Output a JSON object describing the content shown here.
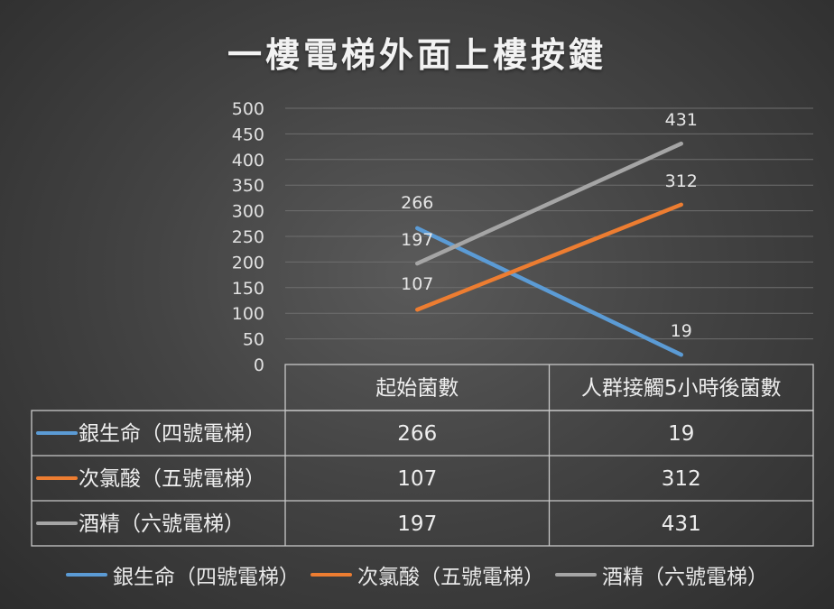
{
  "chart_data": {
    "type": "line",
    "title": "一樓電梯外面上樓按鍵",
    "categories": [
      "起始菌數",
      "人群接觸5小時後菌數"
    ],
    "ylim": [
      0,
      500
    ],
    "yticks": [
      0,
      50,
      100,
      150,
      200,
      250,
      300,
      350,
      400,
      450,
      500
    ],
    "grid": true,
    "data_table": true,
    "legend_position": "bottom",
    "series": [
      {
        "name": "銀生命（四號電梯）",
        "values": [
          266,
          19
        ],
        "color": "#5b9bd5"
      },
      {
        "name": "次氯酸（五號電梯）",
        "values": [
          107,
          312
        ],
        "color": "#ed7d31"
      },
      {
        "name": "酒精（六號電梯）",
        "values": [
          197,
          431
        ],
        "color": "#a5a5a5"
      }
    ]
  }
}
